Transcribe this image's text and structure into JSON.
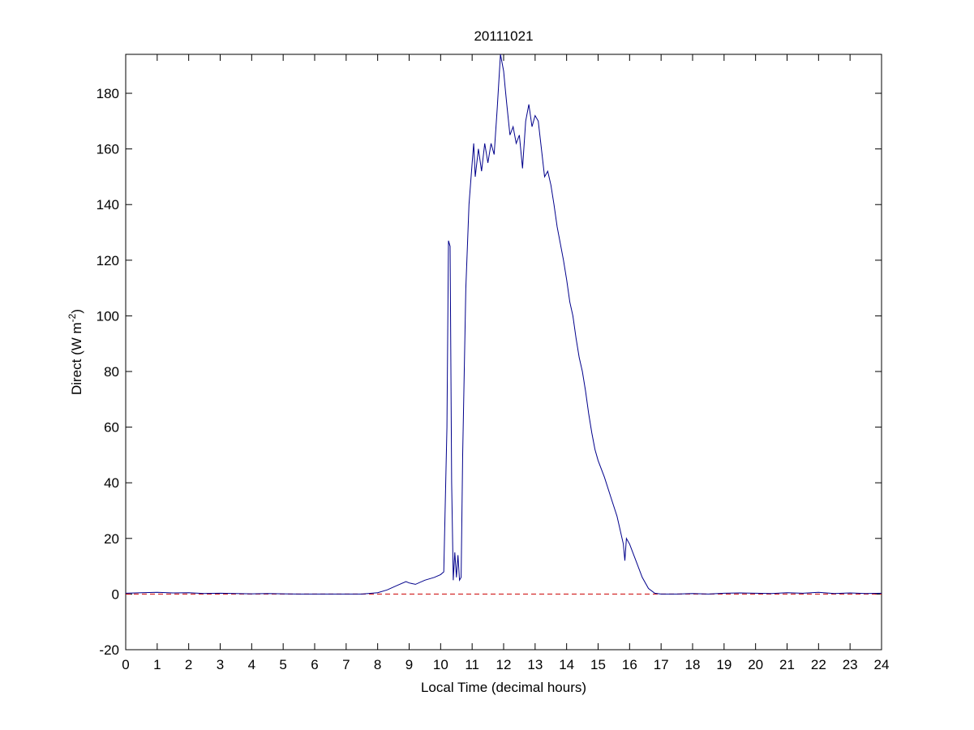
{
  "chart_data": {
    "type": "line",
    "title": "20111021",
    "xlabel": "Local Time (decimal hours)",
    "ylabel": {
      "text": "Direct (W m",
      "superscript": "-2",
      "suffix": ")"
    },
    "x": [
      0,
      0.5,
      1,
      1.5,
      2,
      2.5,
      3,
      3.5,
      4,
      4.5,
      5,
      5.5,
      6,
      6.5,
      7,
      7.5,
      8,
      8.3,
      8.6,
      8.9,
      9,
      9.2,
      9.5,
      9.8,
      10,
      10.1,
      10.2,
      10.25,
      10.3,
      10.35,
      10.4,
      10.45,
      10.5,
      10.55,
      10.6,
      10.65,
      10.7,
      10.8,
      10.9,
      11,
      11.05,
      11.1,
      11.2,
      11.3,
      11.4,
      11.5,
      11.6,
      11.7,
      11.8,
      11.9,
      12,
      12.05,
      12.1,
      12.2,
      12.3,
      12.4,
      12.5,
      12.6,
      12.7,
      12.8,
      12.9,
      13,
      13.1,
      13.2,
      13.3,
      13.4,
      13.5,
      13.6,
      13.7,
      13.8,
      13.9,
      14,
      14.1,
      14.2,
      14.3,
      14.4,
      14.5,
      14.6,
      14.7,
      14.8,
      14.9,
      15,
      15.2,
      15.4,
      15.6,
      15.7,
      15.8,
      15.85,
      15.9,
      16,
      16.2,
      16.4,
      16.6,
      16.8,
      17,
      17.5,
      18,
      18.5,
      19,
      19.5,
      20,
      20.5,
      21,
      21.5,
      22,
      22.5,
      23,
      23.5,
      24
    ],
    "series": [
      {
        "color": "#00008b",
        "values": [
          0.3,
          0.5,
          0.6,
          0.4,
          0.5,
          0.2,
          0.3,
          0.2,
          0.1,
          0.2,
          0.1,
          0,
          0,
          0,
          0,
          0,
          0.5,
          1.5,
          3,
          4.5,
          4,
          3.5,
          5,
          6,
          7,
          8,
          60,
          127,
          125,
          40,
          5,
          15,
          6,
          14,
          5,
          6,
          50,
          110,
          140,
          155,
          162,
          150,
          160,
          152,
          162,
          155,
          162,
          158,
          175,
          194,
          188,
          182,
          176,
          165,
          168,
          162,
          165,
          153,
          170,
          176,
          168,
          172,
          170,
          160,
          150,
          152,
          147,
          140,
          132,
          126,
          120,
          113,
          105,
          100,
          92,
          85,
          80,
          73,
          65,
          58,
          52,
          48,
          42,
          35,
          28,
          23,
          18,
          12,
          20,
          18,
          12,
          6,
          2,
          0.3,
          0,
          0,
          0.2,
          0,
          0.3,
          0.4,
          0.3,
          0.2,
          0.5,
          0.3,
          0.6,
          0.2,
          0.4,
          0.2,
          0.3
        ]
      }
    ],
    "hlines": [
      {
        "value": 0,
        "color": "#cc0000",
        "dashed": true
      }
    ],
    "xlim": [
      0,
      24
    ],
    "xticks": [
      0,
      1,
      2,
      3,
      4,
      5,
      6,
      7,
      8,
      9,
      10,
      11,
      12,
      13,
      14,
      15,
      16,
      17,
      18,
      19,
      20,
      21,
      22,
      23,
      24
    ],
    "ylim": [
      -20,
      194
    ],
    "yticks": [
      -20,
      0,
      20,
      40,
      60,
      80,
      100,
      120,
      140,
      160,
      180
    ]
  }
}
